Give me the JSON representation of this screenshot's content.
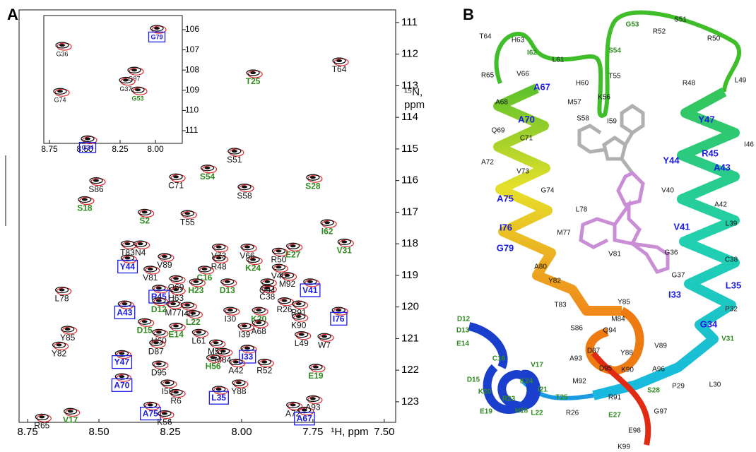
{
  "chart_data": [
    {
      "type": "scatter",
      "panel_label": "A",
      "xlabel": "¹H, ppm",
      "ylabel": "¹⁵N, ppm",
      "xlim": [
        8.78,
        7.46
      ],
      "ylim": [
        123.65,
        110.6
      ],
      "xticks": [
        8.75,
        {
          "value": 8.5,
          "label": "8.50"
        },
        8.25,
        {
          "value": 8,
          "label": "8.00"
        },
        7.75,
        {
          "value": 7.5,
          "label": "7.50"
        }
      ],
      "yticks": [
        111,
        112,
        113,
        114,
        115,
        116,
        117,
        118,
        119,
        120,
        121,
        122,
        123
      ],
      "points": [
        {
          "label": "T64",
          "x": 7.658,
          "y": 112.21,
          "color": "#111111"
        },
        {
          "label": "T25",
          "x": 7.96,
          "y": 112.59,
          "color": "#2e8b1f"
        },
        {
          "label": "S51",
          "x": 8.025,
          "y": 115.07,
          "color": "#111111"
        },
        {
          "label": "S86",
          "x": 8.51,
          "y": 116.0,
          "color": "#111111"
        },
        {
          "label": "C71",
          "x": 8.23,
          "y": 115.88,
          "color": "#111111"
        },
        {
          "label": "S54",
          "x": 8.12,
          "y": 115.6,
          "color": "#2e8b1f"
        },
        {
          "label": "S28",
          "x": 7.75,
          "y": 115.9,
          "color": "#2e8b1f"
        },
        {
          "label": "S58",
          "x": 7.99,
          "y": 116.2,
          "color": "#111111"
        },
        {
          "label": "S18",
          "x": 8.55,
          "y": 116.6,
          "color": "#2e8b1f"
        },
        {
          "label": "S2",
          "x": 8.34,
          "y": 117.0,
          "color": "#2e8b1f"
        },
        {
          "label": "T55",
          "x": 8.19,
          "y": 117.04,
          "color": "#111111"
        },
        {
          "label": "I62",
          "x": 7.7,
          "y": 117.33,
          "color": "#2e8b1f"
        },
        {
          "label": "T83",
          "x": 8.4,
          "y": 118.0,
          "color": "#111111"
        },
        {
          "label": "N4",
          "x": 8.355,
          "y": 118.0,
          "color": "#111111"
        },
        {
          "label": "V31",
          "x": 7.64,
          "y": 117.94,
          "color": "#2e8b1f"
        },
        {
          "label": "E27",
          "x": 7.82,
          "y": 118.07,
          "color": "#2e8b1f"
        },
        {
          "label": "R50",
          "x": 7.87,
          "y": 118.23,
          "color": "#111111"
        },
        {
          "label": "V73",
          "x": 8.08,
          "y": 118.1,
          "color": "#111111"
        },
        {
          "label": "V66",
          "x": 7.98,
          "y": 118.1,
          "color": "#111111"
        },
        {
          "label": "V89",
          "x": 8.27,
          "y": 118.4,
          "color": "#111111"
        },
        {
          "label": "K24",
          "x": 7.96,
          "y": 118.5,
          "color": "#2e8b1f"
        },
        {
          "label": "R48",
          "x": 8.08,
          "y": 118.45,
          "color": "#111111"
        },
        {
          "label": "V40",
          "x": 7.87,
          "y": 118.74,
          "color": "#111111"
        },
        {
          "label": "Y44",
          "x": 8.4,
          "y": 118.45,
          "color": "#1a1ae6"
        },
        {
          "label": "V81",
          "x": 8.32,
          "y": 118.8,
          "color": "#111111"
        },
        {
          "label": "M92",
          "x": 7.84,
          "y": 119.0,
          "color": "#111111"
        },
        {
          "label": "V41",
          "x": 7.76,
          "y": 119.2,
          "color": "#1a1ae6"
        },
        {
          "label": "C16",
          "x": 8.13,
          "y": 118.8,
          "color": "#2e8b1f"
        },
        {
          "label": "Q69",
          "x": 8.23,
          "y": 119.1,
          "color": "#111111"
        },
        {
          "label": "Q94",
          "x": 7.91,
          "y": 119.2,
          "color": "#111111"
        },
        {
          "label": "H23",
          "x": 8.16,
          "y": 119.2,
          "color": "#2e8b1f"
        },
        {
          "label": "D13",
          "x": 8.05,
          "y": 119.2,
          "color": "#2e8b1f"
        },
        {
          "label": "R45",
          "x": 8.29,
          "y": 119.4,
          "color": "#1a1ae6"
        },
        {
          "label": "H63",
          "x": 8.23,
          "y": 119.45,
          "color": "#111111"
        },
        {
          "label": "C38",
          "x": 7.91,
          "y": 119.4,
          "color": "#111111"
        },
        {
          "label": "L78",
          "x": 8.63,
          "y": 119.46,
          "color": "#111111"
        },
        {
          "label": "D12",
          "x": 8.29,
          "y": 119.8,
          "color": "#2e8b1f"
        },
        {
          "label": "R26",
          "x": 7.85,
          "y": 119.8,
          "color": "#111111"
        },
        {
          "label": "R91",
          "x": 7.8,
          "y": 119.9,
          "color": "#111111"
        },
        {
          "label": "A43",
          "x": 8.41,
          "y": 119.9,
          "color": "#1a1ae6"
        },
        {
          "label": "M77",
          "x": 8.24,
          "y": 119.9,
          "color": "#111111"
        },
        {
          "label": "I40",
          "x": 8.19,
          "y": 119.94,
          "color": "#111111"
        },
        {
          "label": "L22",
          "x": 8.17,
          "y": 120.2,
          "color": "#2e8b1f"
        },
        {
          "label": "I30",
          "x": 8.04,
          "y": 120.1,
          "color": "#111111"
        },
        {
          "label": "K20",
          "x": 7.94,
          "y": 120.1,
          "color": "#2e8b1f"
        },
        {
          "label": "I76",
          "x": 7.66,
          "y": 120.1,
          "color": "#1a1ae6"
        },
        {
          "label": "K90",
          "x": 7.8,
          "y": 120.3,
          "color": "#111111"
        },
        {
          "label": "A68",
          "x": 7.94,
          "y": 120.5,
          "color": "#111111"
        },
        {
          "label": "D15",
          "x": 8.34,
          "y": 120.46,
          "color": "#2e8b1f"
        },
        {
          "label": "Y85",
          "x": 8.61,
          "y": 120.7,
          "color": "#111111"
        },
        {
          "label": "H60",
          "x": 8.29,
          "y": 120.8,
          "color": "#111111"
        },
        {
          "label": "E14",
          "x": 8.23,
          "y": 120.6,
          "color": "#2e8b1f"
        },
        {
          "label": "L61",
          "x": 8.15,
          "y": 120.8,
          "color": "#111111"
        },
        {
          "label": "L49",
          "x": 7.79,
          "y": 120.87,
          "color": "#111111"
        },
        {
          "label": "W7",
          "x": 7.71,
          "y": 120.93,
          "color": "#111111"
        },
        {
          "label": "D87",
          "x": 8.3,
          "y": 121.13,
          "color": "#111111"
        },
        {
          "label": "M57",
          "x": 8.09,
          "y": 121.13,
          "color": "#111111"
        },
        {
          "label": "I39",
          "x": 7.99,
          "y": 120.6,
          "color": "#111111"
        },
        {
          "label": "Y82",
          "x": 8.64,
          "y": 121.2,
          "color": "#111111"
        },
        {
          "label": "M84",
          "x": 8.065,
          "y": 121.4,
          "color": "#111111"
        },
        {
          "label": "I33",
          "x": 7.98,
          "y": 121.3,
          "color": "#1a1ae6"
        },
        {
          "label": "Y47",
          "x": 8.42,
          "y": 121.47,
          "color": "#1a1ae6"
        },
        {
          "label": "H56",
          "x": 8.1,
          "y": 121.6,
          "color": "#2e8b1f"
        },
        {
          "label": "A42",
          "x": 8.02,
          "y": 121.74,
          "color": "#111111"
        },
        {
          "label": "R52",
          "x": 7.92,
          "y": 121.74,
          "color": "#111111"
        },
        {
          "label": "D95",
          "x": 8.29,
          "y": 121.8,
          "color": "#111111"
        },
        {
          "label": "E19",
          "x": 7.74,
          "y": 121.9,
          "color": "#2e8b1f"
        },
        {
          "label": "I59",
          "x": 8.26,
          "y": 122.4,
          "color": "#111111"
        },
        {
          "label": "A70",
          "x": 8.42,
          "y": 122.2,
          "color": "#1a1ae6"
        },
        {
          "label": "Y88",
          "x": 8.01,
          "y": 122.4,
          "color": "#111111"
        },
        {
          "label": "L35",
          "x": 8.08,
          "y": 122.6,
          "color": "#1a1ae6"
        },
        {
          "label": "R6",
          "x": 8.23,
          "y": 122.7,
          "color": "#111111"
        },
        {
          "label": "A93",
          "x": 7.75,
          "y": 122.9,
          "color": "#111111"
        },
        {
          "label": "A72",
          "x": 7.82,
          "y": 123.1,
          "color": "#111111"
        },
        {
          "label": "A75",
          "x": 8.32,
          "y": 123.1,
          "color": "#1a1ae6"
        },
        {
          "label": "A67",
          "x": 7.78,
          "y": 123.26,
          "color": "#1a1ae6"
        },
        {
          "label": "V17",
          "x": 8.6,
          "y": 123.3,
          "color": "#2e8b1f"
        },
        {
          "label": "R65",
          "x": 8.7,
          "y": 123.48,
          "color": "#111111"
        },
        {
          "label": "K56",
          "x": 8.27,
          "y": 123.37,
          "color": "#111111"
        }
      ]
    },
    {
      "type": "scatter",
      "xlim": [
        8.79,
        7.81
      ],
      "ylim": [
        111.63,
        105.3
      ],
      "xticks": [
        8.75,
        {
          "value": 8.5,
          "label": "8.50"
        },
        8.25,
        {
          "value": 8,
          "label": "8.00"
        }
      ],
      "yticks": [
        106,
        107,
        108,
        109,
        110,
        111
      ],
      "points": [
        {
          "label": "G36",
          "x": 8.66,
          "y": 106.77,
          "color": "#111111"
        },
        {
          "label": "G79",
          "x": 7.99,
          "y": 105.93,
          "color": "#1a1ae6"
        },
        {
          "label": "G97",
          "x": 8.15,
          "y": 108.0,
          "color": "#111111"
        },
        {
          "label": "G37",
          "x": 8.21,
          "y": 108.5,
          "color": "#111111"
        },
        {
          "label": "G74",
          "x": 8.675,
          "y": 109.05,
          "color": "#111111"
        },
        {
          "label": "G53",
          "x": 8.125,
          "y": 108.98,
          "color": "#2e8b1f"
        },
        {
          "label": "G34",
          "x": 8.48,
          "y": 111.4,
          "color": "#1a1ae6"
        }
      ]
    }
  ],
  "panel_b": {
    "panel_label": "B",
    "labels": [
      {
        "text": "T64",
        "color": "#111111"
      },
      {
        "text": "H63",
        "color": "#111111"
      },
      {
        "text": "I62",
        "color": "#2e8b1f"
      },
      {
        "text": "G53",
        "color": "#2e8b1f"
      },
      {
        "text": "S51",
        "color": "#111111"
      },
      {
        "text": "R52",
        "color": "#111111"
      },
      {
        "text": "R50",
        "color": "#111111"
      },
      {
        "text": "S54",
        "color": "#2e8b1f"
      },
      {
        "text": "L61",
        "color": "#111111"
      },
      {
        "text": "R65",
        "color": "#111111"
      },
      {
        "text": "V66",
        "color": "#111111"
      },
      {
        "text": "A67",
        "color": "#1a1ae6"
      },
      {
        "text": "H60",
        "color": "#111111"
      },
      {
        "text": "T55",
        "color": "#111111"
      },
      {
        "text": "K56",
        "color": "#111111"
      },
      {
        "text": "M57",
        "color": "#111111"
      },
      {
        "text": "R48",
        "color": "#111111"
      },
      {
        "text": "L49",
        "color": "#111111"
      },
      {
        "text": "A68",
        "color": "#111111"
      },
      {
        "text": "S58",
        "color": "#111111"
      },
      {
        "text": "I59",
        "color": "#111111"
      },
      {
        "text": "A70",
        "color": "#1a1ae6"
      },
      {
        "text": "Y47",
        "color": "#1a1ae6"
      },
      {
        "text": "Q69",
        "color": "#111111"
      },
      {
        "text": "C71",
        "color": "#111111"
      },
      {
        "text": "R45",
        "color": "#1a1ae6"
      },
      {
        "text": "I46",
        "color": "#111111"
      },
      {
        "text": "Y44",
        "color": "#1a1ae6"
      },
      {
        "text": "A43",
        "color": "#1a1ae6"
      },
      {
        "text": "A72",
        "color": "#111111"
      },
      {
        "text": "V73",
        "color": "#111111"
      },
      {
        "text": "G74",
        "color": "#111111"
      },
      {
        "text": "V40",
        "color": "#111111"
      },
      {
        "text": "A42",
        "color": "#111111"
      },
      {
        "text": "A75",
        "color": "#1a1ae6"
      },
      {
        "text": "L78",
        "color": "#111111"
      },
      {
        "text": "V41",
        "color": "#1a1ae6"
      },
      {
        "text": "L39",
        "color": "#111111"
      },
      {
        "text": "I76",
        "color": "#1a1ae6"
      },
      {
        "text": "M77",
        "color": "#111111"
      },
      {
        "text": "G79",
        "color": "#1a1ae6"
      },
      {
        "text": "V81",
        "color": "#111111"
      },
      {
        "text": "G36",
        "color": "#111111"
      },
      {
        "text": "C38",
        "color": "#111111"
      },
      {
        "text": "A80",
        "color": "#111111"
      },
      {
        "text": "G37",
        "color": "#111111"
      },
      {
        "text": "Y82",
        "color": "#111111"
      },
      {
        "text": "L35",
        "color": "#1a1ae6"
      },
      {
        "text": "T83",
        "color": "#111111"
      },
      {
        "text": "Y85",
        "color": "#111111"
      },
      {
        "text": "I33",
        "color": "#1a1ae6"
      },
      {
        "text": "M84",
        "color": "#111111"
      },
      {
        "text": "P32",
        "color": "#111111"
      },
      {
        "text": "S86",
        "color": "#111111"
      },
      {
        "text": "Q94",
        "color": "#111111"
      },
      {
        "text": "G34",
        "color": "#1a1ae6"
      },
      {
        "text": "D12",
        "color": "#2e8b1f"
      },
      {
        "text": "D13",
        "color": "#2e8b1f"
      },
      {
        "text": "D87",
        "color": "#111111"
      },
      {
        "text": "Y88",
        "color": "#111111"
      },
      {
        "text": "V89",
        "color": "#111111"
      },
      {
        "text": "A93",
        "color": "#111111"
      },
      {
        "text": "V31",
        "color": "#2e8b1f"
      },
      {
        "text": "E14",
        "color": "#2e8b1f"
      },
      {
        "text": "C16",
        "color": "#2e8b1f"
      },
      {
        "text": "V17",
        "color": "#2e8b1f"
      },
      {
        "text": "D95",
        "color": "#111111"
      },
      {
        "text": "K90",
        "color": "#111111"
      },
      {
        "text": "A96",
        "color": "#111111"
      },
      {
        "text": "M92",
        "color": "#111111"
      },
      {
        "text": "K24",
        "color": "#2e8b1f"
      },
      {
        "text": "D15",
        "color": "#2e8b1f"
      },
      {
        "text": "K20",
        "color": "#2e8b1f"
      },
      {
        "text": "I21",
        "color": "#2e8b1f"
      },
      {
        "text": "R23",
        "color": "#2e8b1f"
      },
      {
        "text": "L30",
        "color": "#111111"
      },
      {
        "text": "P29",
        "color": "#111111"
      },
      {
        "text": "S28",
        "color": "#2e8b1f"
      },
      {
        "text": "T25",
        "color": "#2e8b1f"
      },
      {
        "text": "R91",
        "color": "#111111"
      },
      {
        "text": "R26",
        "color": "#111111"
      },
      {
        "text": "H18",
        "color": "#2e8b1f"
      },
      {
        "text": "E27",
        "color": "#2e8b1f"
      },
      {
        "text": "G97",
        "color": "#111111"
      },
      {
        "text": "E19",
        "color": "#2e8b1f"
      },
      {
        "text": "L22",
        "color": "#2e8b1f"
      },
      {
        "text": "E98",
        "color": "#111111"
      },
      {
        "text": "K99",
        "color": "#111111"
      }
    ]
  }
}
